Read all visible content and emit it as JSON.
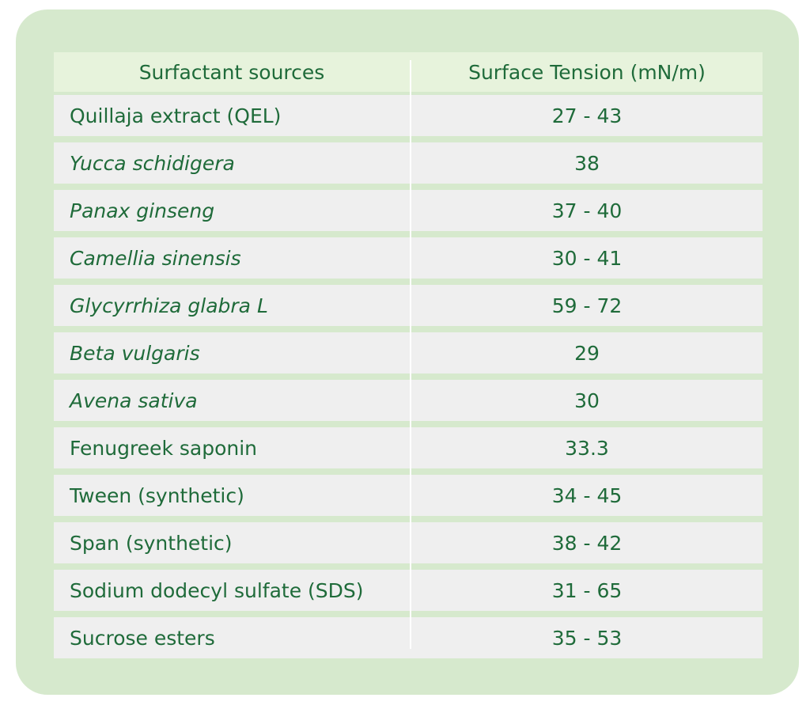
{
  "table": {
    "headers": [
      "Surfactant sources",
      "Surface Tension (mN/m)"
    ],
    "rows": [
      {
        "source": "Quillaja extract (QEL)",
        "tension": "27 - 43",
        "italic": false
      },
      {
        "source": "Yucca schidigera",
        "tension": "38",
        "italic": true
      },
      {
        "source": "Panax ginseng",
        "tension": "37 - 40",
        "italic": true
      },
      {
        "source": "Camellia sinensis",
        "tension": "30 -  41",
        "italic": true
      },
      {
        "source": "Glycyrrhiza glabra L",
        "tension": "59 - 72",
        "italic": true
      },
      {
        "source": "Beta vulgaris",
        "tension": "29",
        "italic": true
      },
      {
        "source": "Avena sativa",
        "tension": "30",
        "italic": true
      },
      {
        "source": "Fenugreek saponin",
        "tension": "33.3",
        "italic": false
      },
      {
        "source": "Tween (synthetic)",
        "tension": "34 - 45",
        "italic": false
      },
      {
        "source": "Span (synthetic)",
        "tension": "38 - 42",
        "italic": false
      },
      {
        "source": "Sodium dodecyl sulfate (SDS)",
        "tension": "31 - 65",
        "italic": false
      },
      {
        "source": "Sucrose esters",
        "tension": "35 - 53",
        "italic": false
      }
    ]
  },
  "colors": {
    "card_bg": "#d6e9cd",
    "header_bg": "#e7f3dc",
    "row_bg": "#efefef",
    "text": "#1f6b3a"
  }
}
